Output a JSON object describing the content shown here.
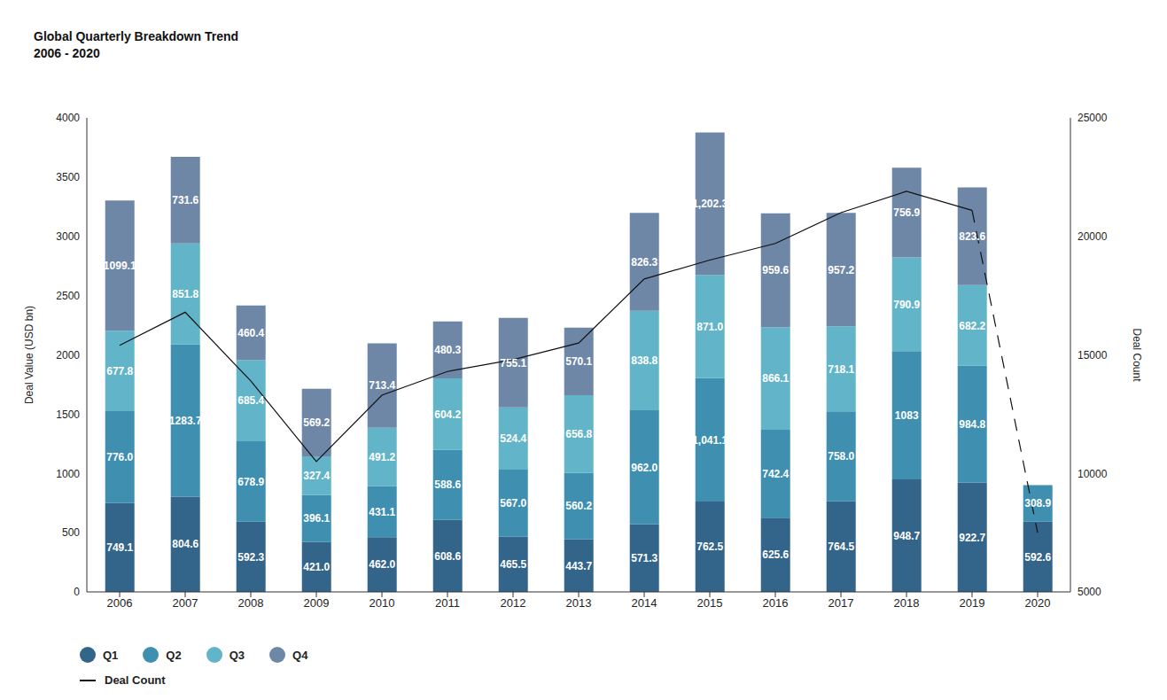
{
  "chart_data": {
    "type": "bar",
    "title": "Global Quarterly Breakdown Trend",
    "subtitle": "2006 - 2020",
    "y_label": "Deal Value (USD bn)",
    "y2_label": "Deal Count",
    "categories": [
      "2006",
      "2007",
      "2008",
      "2009",
      "2010",
      "2011",
      "2012",
      "2013",
      "2014",
      "2015",
      "2016",
      "2017",
      "2018",
      "2019",
      "2020"
    ],
    "stacked": true,
    "data_labels": true,
    "grid": false,
    "legend": "bottom",
    "ylim": [
      0,
      4000
    ],
    "yticks": [
      0,
      500,
      1000,
      1500,
      2000,
      2500,
      3000,
      3500,
      4000
    ],
    "y2lim": [
      5000,
      25000
    ],
    "y2ticks": [
      5000,
      10000,
      15000,
      20000,
      25000
    ],
    "series": [
      {
        "name": "Q1",
        "type": "bar",
        "color": "#33658a",
        "values": [
          749.1,
          804.6,
          592.3,
          421.0,
          462.0,
          608.6,
          465.5,
          443.7,
          571.3,
          762.5,
          625.6,
          764.5,
          948.7,
          922.7,
          592.6
        ],
        "value_labels": [
          "749.1",
          "804.6",
          "592.3",
          "421.0",
          "462.0",
          "608.6",
          "465.5",
          "443.7",
          "571.3",
          "762.5",
          "625.6",
          "764.5",
          "948.7",
          "922.7",
          "592.6"
        ]
      },
      {
        "name": "Q2",
        "type": "bar",
        "color": "#3e8fb0",
        "values": [
          776.0,
          1283.7,
          678.9,
          396.1,
          431.1,
          588.6,
          567.0,
          560.2,
          962.0,
          1041.1,
          742.4,
          758.0,
          1083,
          984.8,
          308.9
        ],
        "value_labels": [
          "776.0",
          "1283.7",
          "678.9",
          "396.1",
          "431.1",
          "588.6",
          "567.0",
          "560.2",
          "962.0",
          "1,041.1",
          "742.4",
          "758.0",
          "1083",
          "984.8",
          "308.9"
        ]
      },
      {
        "name": "Q3",
        "type": "bar",
        "color": "#62b4c8",
        "values": [
          677.8,
          851.8,
          685.4,
          327.4,
          491.2,
          604.2,
          524.4,
          656.8,
          838.8,
          871.0,
          866.1,
          718.1,
          790.9,
          682.2,
          null
        ],
        "value_labels": [
          "677.8",
          "851.8",
          "685.4",
          "327.4",
          "491.2",
          "604.2",
          "524.4",
          "656.8",
          "838.8",
          "871.0",
          "866.1",
          "718.1",
          "790.9",
          "682.2",
          null
        ]
      },
      {
        "name": "Q4",
        "type": "bar",
        "color": "#6f87a7",
        "values": [
          1099.1,
          731.6,
          460.4,
          569.2,
          713.4,
          480.3,
          755.1,
          570.1,
          826.3,
          1202.3,
          959.6,
          957.2,
          756.9,
          823.6,
          null
        ],
        "value_labels": [
          "1099.1",
          "731.6",
          "460.4",
          "569.2",
          "713.4",
          "480.3",
          "755.1",
          "570.1",
          "826.3",
          "1,202.3",
          "959.6",
          "957.2",
          "756.9",
          "823.6",
          null
        ]
      },
      {
        "name": "Deal Count",
        "type": "line",
        "axis": "y2",
        "color": "#111111",
        "values": [
          15400,
          16800,
          13900,
          10500,
          13300,
          14300,
          14800,
          15500,
          18200,
          19000,
          19700,
          21000,
          21900,
          21100,
          7500
        ]
      }
    ]
  }
}
